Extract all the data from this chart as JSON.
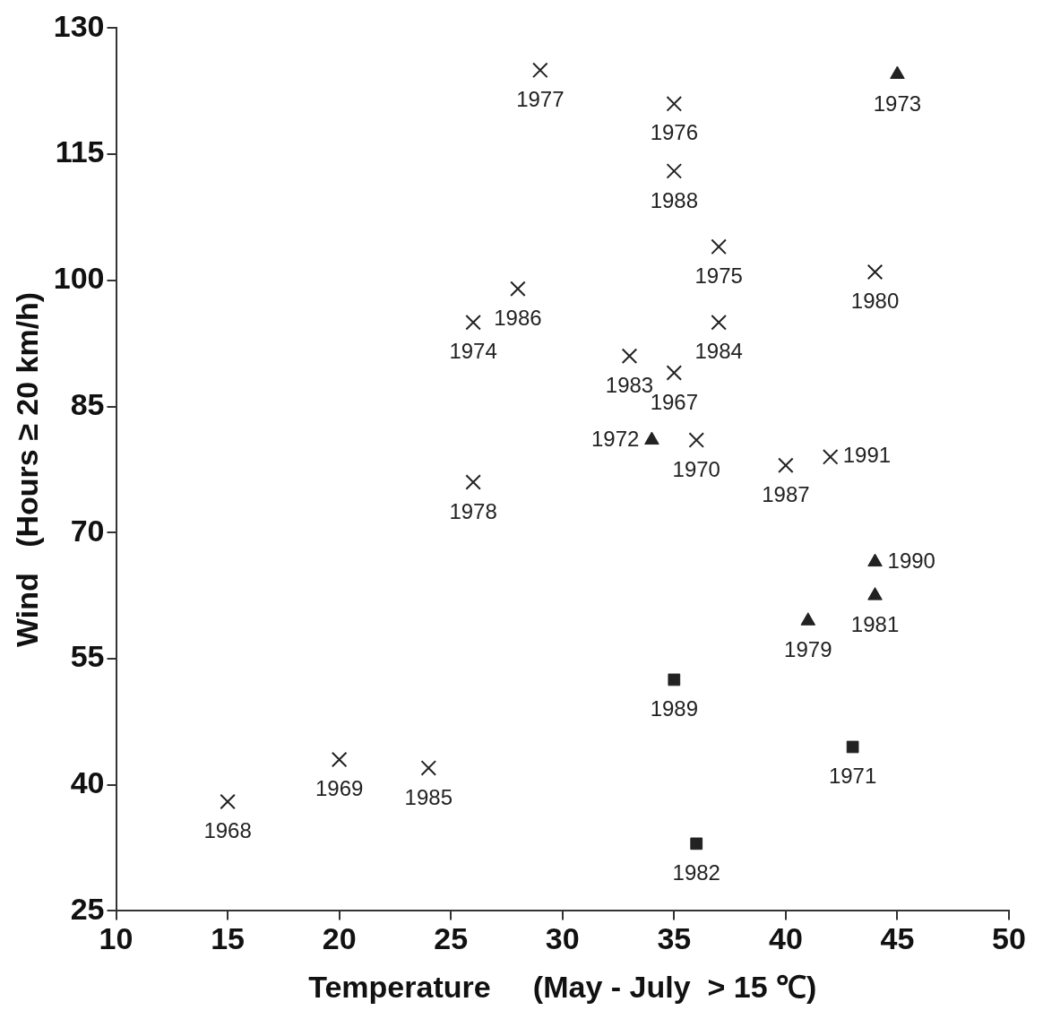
{
  "chart_data": {
    "type": "scatter",
    "xlabel": "Temperature     (May - July  > 15 ℃)",
    "ylabel": "Wind   (Hours ≥ 20 km/h)",
    "xlim": [
      10,
      50
    ],
    "xticks": [
      10,
      15,
      20,
      25,
      30,
      35,
      40,
      45,
      50
    ],
    "ylim": [
      25,
      130
    ],
    "yticks": [
      25,
      40,
      55,
      70,
      85,
      100,
      115,
      130
    ],
    "grid": false,
    "legend": false,
    "series": [
      {
        "color": "#222222",
        "marker": "cross",
        "x": [
          29,
          35,
          35,
          37,
          44,
          28,
          26,
          37,
          33,
          35,
          36,
          40,
          42,
          26,
          20,
          24,
          15
        ],
        "values": [
          125,
          121,
          113,
          104,
          101,
          99,
          95,
          95,
          91,
          89,
          81,
          78,
          79,
          76,
          43,
          42,
          38
        ]
      },
      {
        "color": "#222222",
        "marker": "triangle",
        "x": [
          45,
          34,
          44,
          44,
          41
        ],
        "values": [
          124.5,
          81,
          66.5,
          62.5,
          59.5
        ]
      },
      {
        "color": "#222222",
        "marker": "square",
        "x": [
          35,
          43,
          36
        ],
        "values": [
          52.5,
          44.5,
          33
        ]
      }
    ],
    "annotations": [
      {
        "text": "1977",
        "x": 29,
        "y": 125
      },
      {
        "text": "1976",
        "x": 35,
        "y": 121
      },
      {
        "text": "1988",
        "x": 35,
        "y": 113
      },
      {
        "text": "1975",
        "x": 37,
        "y": 104
      },
      {
        "text": "1980",
        "x": 44,
        "y": 101
      },
      {
        "text": "1986",
        "x": 28,
        "y": 99
      },
      {
        "text": "1974",
        "x": 26,
        "y": 95
      },
      {
        "text": "1984",
        "x": 37,
        "y": 95
      },
      {
        "text": "1983",
        "x": 33,
        "y": 91
      },
      {
        "text": "1967",
        "x": 35,
        "y": 89
      },
      {
        "text": "1970",
        "x": 36,
        "y": 81
      },
      {
        "text": "1987",
        "x": 40,
        "y": 78
      },
      {
        "text": "1991",
        "x": 42,
        "y": 79
      },
      {
        "text": "1978",
        "x": 26,
        "y": 76
      },
      {
        "text": "1969",
        "x": 20,
        "y": 43
      },
      {
        "text": "1985",
        "x": 24,
        "y": 42
      },
      {
        "text": "1968",
        "x": 15,
        "y": 38
      },
      {
        "text": "1973",
        "x": 45,
        "y": 124.5
      },
      {
        "text": "1972",
        "x": 34,
        "y": 81
      },
      {
        "text": "1990",
        "x": 44,
        "y": 66.5
      },
      {
        "text": "1981",
        "x": 44,
        "y": 62.5
      },
      {
        "text": "1979",
        "x": 41,
        "y": 59.5
      },
      {
        "text": "1989",
        "x": 35,
        "y": 52.5
      },
      {
        "text": "1971",
        "x": 43,
        "y": 44.5
      },
      {
        "text": "1982",
        "x": 36,
        "y": 33
      }
    ]
  }
}
